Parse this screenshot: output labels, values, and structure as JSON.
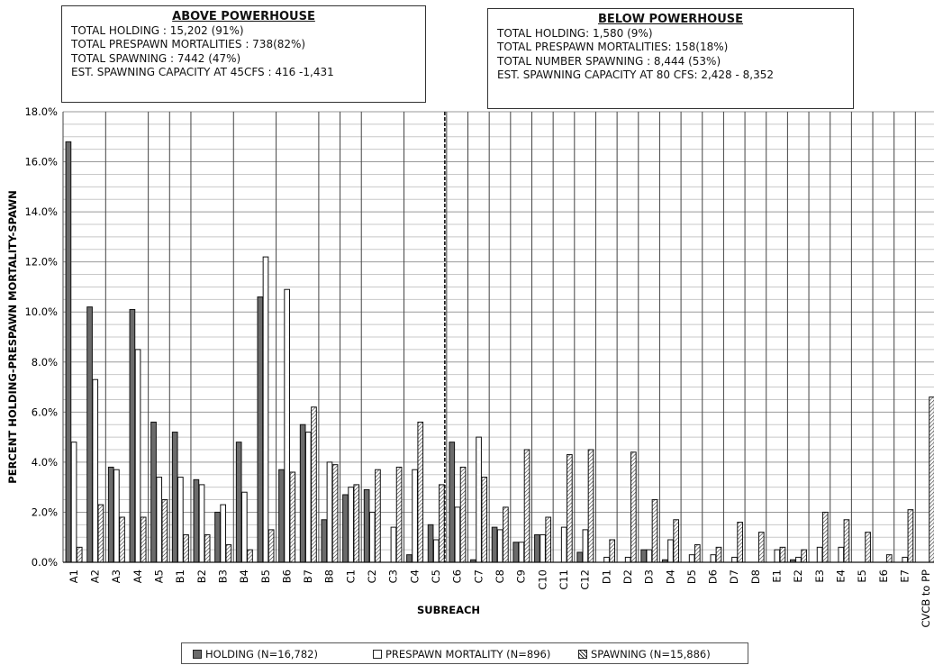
{
  "above_box": {
    "heading": "ABOVE  POWERHOUSE",
    "lines": [
      "TOTAL  HOLDING  :  15,202 (91%)",
      "TOTAL  PRESPAWN  MORTALITIES  :  738(82%)",
      "TOTAL  SPAWNING : 7442 (47%)",
      "EST. SPAWNING CAPACITY  AT 45CFS : 416 -1,431"
    ]
  },
  "below_box": {
    "heading": "BELOW POWERHOUSE",
    "lines": [
      "TOTAL  HOLDING:   1,580 (9%)",
      "TOTAL  PRESPAWN  MORTALITIES:   158(18%)",
      "TOTAL  NUMBER  SPAWNING :  8,444 (53%)",
      "EST.  SPAWNING CAPACITY AT 80 CFS:  2,428 - 8,352"
    ]
  },
  "chart_data": {
    "type": "bar",
    "xlabel": "SUBREACH",
    "ylabel": "PERCENT HOLDING-PRESPAWN MORTALITY-SPAWN",
    "ylim": [
      0,
      18
    ],
    "y_ticks": [
      "0.0%",
      "2.0%",
      "4.0%",
      "6.0%",
      "8.0%",
      "10.0%",
      "12.0%",
      "14.0%",
      "16.0%",
      "18.0%"
    ],
    "grid": "horizontal every 0.5%, vertical separators at subreach groups",
    "legend_position": "bottom",
    "divider_after_category": "C5",
    "categories": [
      "A1",
      "A2",
      "A3",
      "A4",
      "A5",
      "B1",
      "B2",
      "B3",
      "B4",
      "B5",
      "B6",
      "B7",
      "B8",
      "C1",
      "C2",
      "C3",
      "C4",
      "C5",
      "C6",
      "C7",
      "C8",
      "C9",
      "C10",
      "C11",
      "C12",
      "D1",
      "D2",
      "D3",
      "D4",
      "D5",
      "D6",
      "D7",
      "D8",
      "E1",
      "E2",
      "E3",
      "E4",
      "E5",
      "E6",
      "E7",
      "CVCB to PP"
    ],
    "series": [
      {
        "name": "HOLDING (N=16,782)",
        "style": "solid",
        "color": "#6b6b6b",
        "values": [
          16.8,
          10.2,
          3.8,
          10.1,
          5.6,
          5.2,
          3.3,
          2.0,
          4.8,
          10.6,
          3.7,
          5.5,
          1.7,
          2.7,
          2.9,
          0,
          0.3,
          1.5,
          4.8,
          0.1,
          1.4,
          0.8,
          1.1,
          0,
          0.4,
          0,
          0,
          0.5,
          0.1,
          0,
          0,
          0,
          0,
          0,
          0.1,
          0,
          0,
          0,
          0,
          0,
          0
        ]
      },
      {
        "name": "PRESPAWN MORTALITY (N=896)",
        "style": "open",
        "color": "#ffffff",
        "values": [
          4.8,
          7.3,
          3.7,
          8.5,
          3.4,
          3.4,
          3.1,
          2.3,
          2.8,
          12.2,
          10.9,
          5.2,
          4.0,
          3.0,
          2.0,
          1.4,
          3.7,
          0.9,
          2.2,
          5.0,
          1.3,
          0.8,
          1.1,
          1.4,
          1.3,
          0.2,
          0.2,
          0.5,
          0.9,
          0.3,
          0.3,
          0.2,
          0,
          0.5,
          0.2,
          0.6,
          0.6,
          0,
          0,
          0.2,
          0
        ]
      },
      {
        "name": "SPAWNING (N=15,886)",
        "style": "hatched",
        "color": "#888888",
        "values": [
          0.6,
          2.3,
          1.8,
          1.8,
          2.5,
          1.1,
          1.1,
          0.7,
          0.5,
          1.3,
          3.6,
          6.2,
          3.9,
          3.1,
          3.7,
          3.8,
          5.6,
          3.1,
          3.8,
          3.4,
          2.2,
          4.5,
          1.8,
          4.3,
          4.5,
          0.9,
          4.4,
          2.5,
          1.7,
          0.7,
          0.6,
          1.6,
          1.2,
          0.6,
          0.5,
          2.0,
          1.7,
          1.2,
          0.3,
          2.1,
          6.6
        ]
      }
    ]
  }
}
